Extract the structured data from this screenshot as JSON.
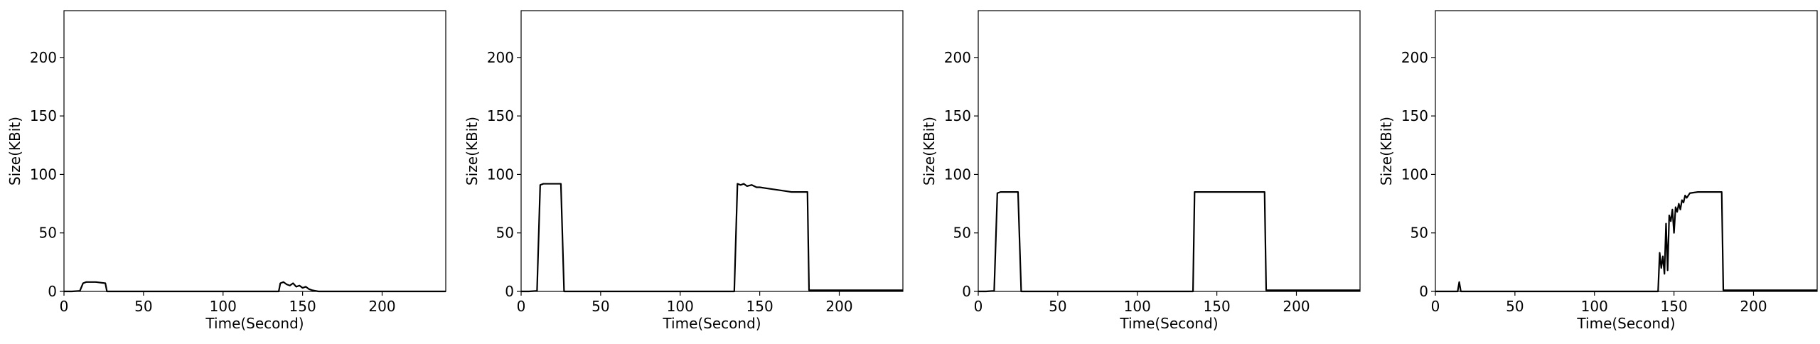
{
  "chart_data": [
    {
      "type": "line",
      "xlabel": "Time(Second)",
      "ylabel": "Size(KBit)",
      "xlim": [
        0,
        240
      ],
      "ylim": [
        0,
        240
      ],
      "xticks": [
        0,
        50,
        100,
        150,
        200
      ],
      "yticks": [
        0,
        50,
        100,
        150,
        200
      ],
      "grid": false,
      "series": [
        {
          "color": "#000000",
          "x": [
            0,
            5,
            10,
            12,
            14,
            20,
            26,
            27,
            30,
            60,
            100,
            135,
            136,
            138,
            140,
            142,
            144,
            146,
            148,
            150,
            152,
            154,
            156,
            160,
            170,
            180,
            200,
            220,
            240
          ],
          "y": [
            0,
            0,
            0.5,
            7,
            8,
            8,
            7,
            0,
            0,
            0,
            0,
            0,
            7,
            8,
            6,
            5,
            7,
            4,
            5,
            3,
            4,
            2,
            1,
            0,
            0,
            0,
            0,
            0,
            0
          ]
        }
      ]
    },
    {
      "type": "line",
      "xlabel": "Time(Second)",
      "ylabel": "Size(KBit)",
      "xlim": [
        0,
        240
      ],
      "ylim": [
        0,
        240
      ],
      "xticks": [
        0,
        50,
        100,
        150,
        200
      ],
      "yticks": [
        0,
        50,
        100,
        150,
        200
      ],
      "grid": false,
      "series": [
        {
          "color": "#000000",
          "x": [
            0,
            5,
            10,
            12,
            14,
            20,
            25,
            27,
            30,
            60,
            100,
            134,
            136,
            138,
            140,
            142,
            145,
            148,
            150,
            155,
            160,
            165,
            170,
            175,
            180,
            181,
            190,
            200,
            220,
            240
          ],
          "y": [
            0,
            0,
            0.5,
            91,
            92,
            92,
            92,
            0,
            0,
            0,
            0,
            0,
            92,
            91,
            92,
            90,
            91,
            89,
            89,
            88,
            87,
            86,
            85,
            85,
            85,
            1,
            1,
            1,
            1,
            1
          ]
        }
      ]
    },
    {
      "type": "line",
      "xlabel": "Time(Second)",
      "ylabel": "Size(KBit)",
      "xlim": [
        0,
        240
      ],
      "ylim": [
        0,
        240
      ],
      "xticks": [
        0,
        50,
        100,
        150,
        200
      ],
      "yticks": [
        0,
        50,
        100,
        150,
        200
      ],
      "grid": false,
      "series": [
        {
          "color": "#000000",
          "x": [
            0,
            5,
            10,
            12,
            14,
            20,
            25,
            27,
            30,
            60,
            100,
            135,
            136,
            140,
            150,
            160,
            170,
            180,
            181,
            190,
            200,
            220,
            240
          ],
          "y": [
            0,
            0,
            0.5,
            84,
            85,
            85,
            85,
            0,
            0,
            0,
            0,
            0,
            85,
            85,
            85,
            85,
            85,
            85,
            1,
            1,
            1,
            1,
            1
          ]
        }
      ]
    },
    {
      "type": "line",
      "xlabel": "Time(Second)",
      "ylabel": "Size(KBit)",
      "xlim": [
        0,
        240
      ],
      "ylim": [
        0,
        240
      ],
      "xticks": [
        0,
        50,
        100,
        150,
        200
      ],
      "yticks": [
        0,
        50,
        100,
        150,
        200
      ],
      "grid": false,
      "series": [
        {
          "color": "#000000",
          "x": [
            0,
            10,
            14,
            15,
            16,
            30,
            60,
            100,
            140,
            141,
            142,
            143,
            144,
            145,
            146,
            147,
            148,
            149,
            150,
            151,
            152,
            153,
            154,
            155,
            156,
            157,
            158,
            160,
            165,
            170,
            175,
            180,
            181,
            190,
            200,
            220,
            240
          ],
          "y": [
            0,
            0,
            0,
            8,
            0,
            0,
            0,
            0,
            0,
            33,
            20,
            30,
            15,
            58,
            18,
            65,
            60,
            70,
            50,
            72,
            68,
            75,
            70,
            78,
            76,
            82,
            80,
            84,
            85,
            85,
            85,
            85,
            1,
            1,
            1,
            1,
            1
          ]
        }
      ]
    }
  ]
}
